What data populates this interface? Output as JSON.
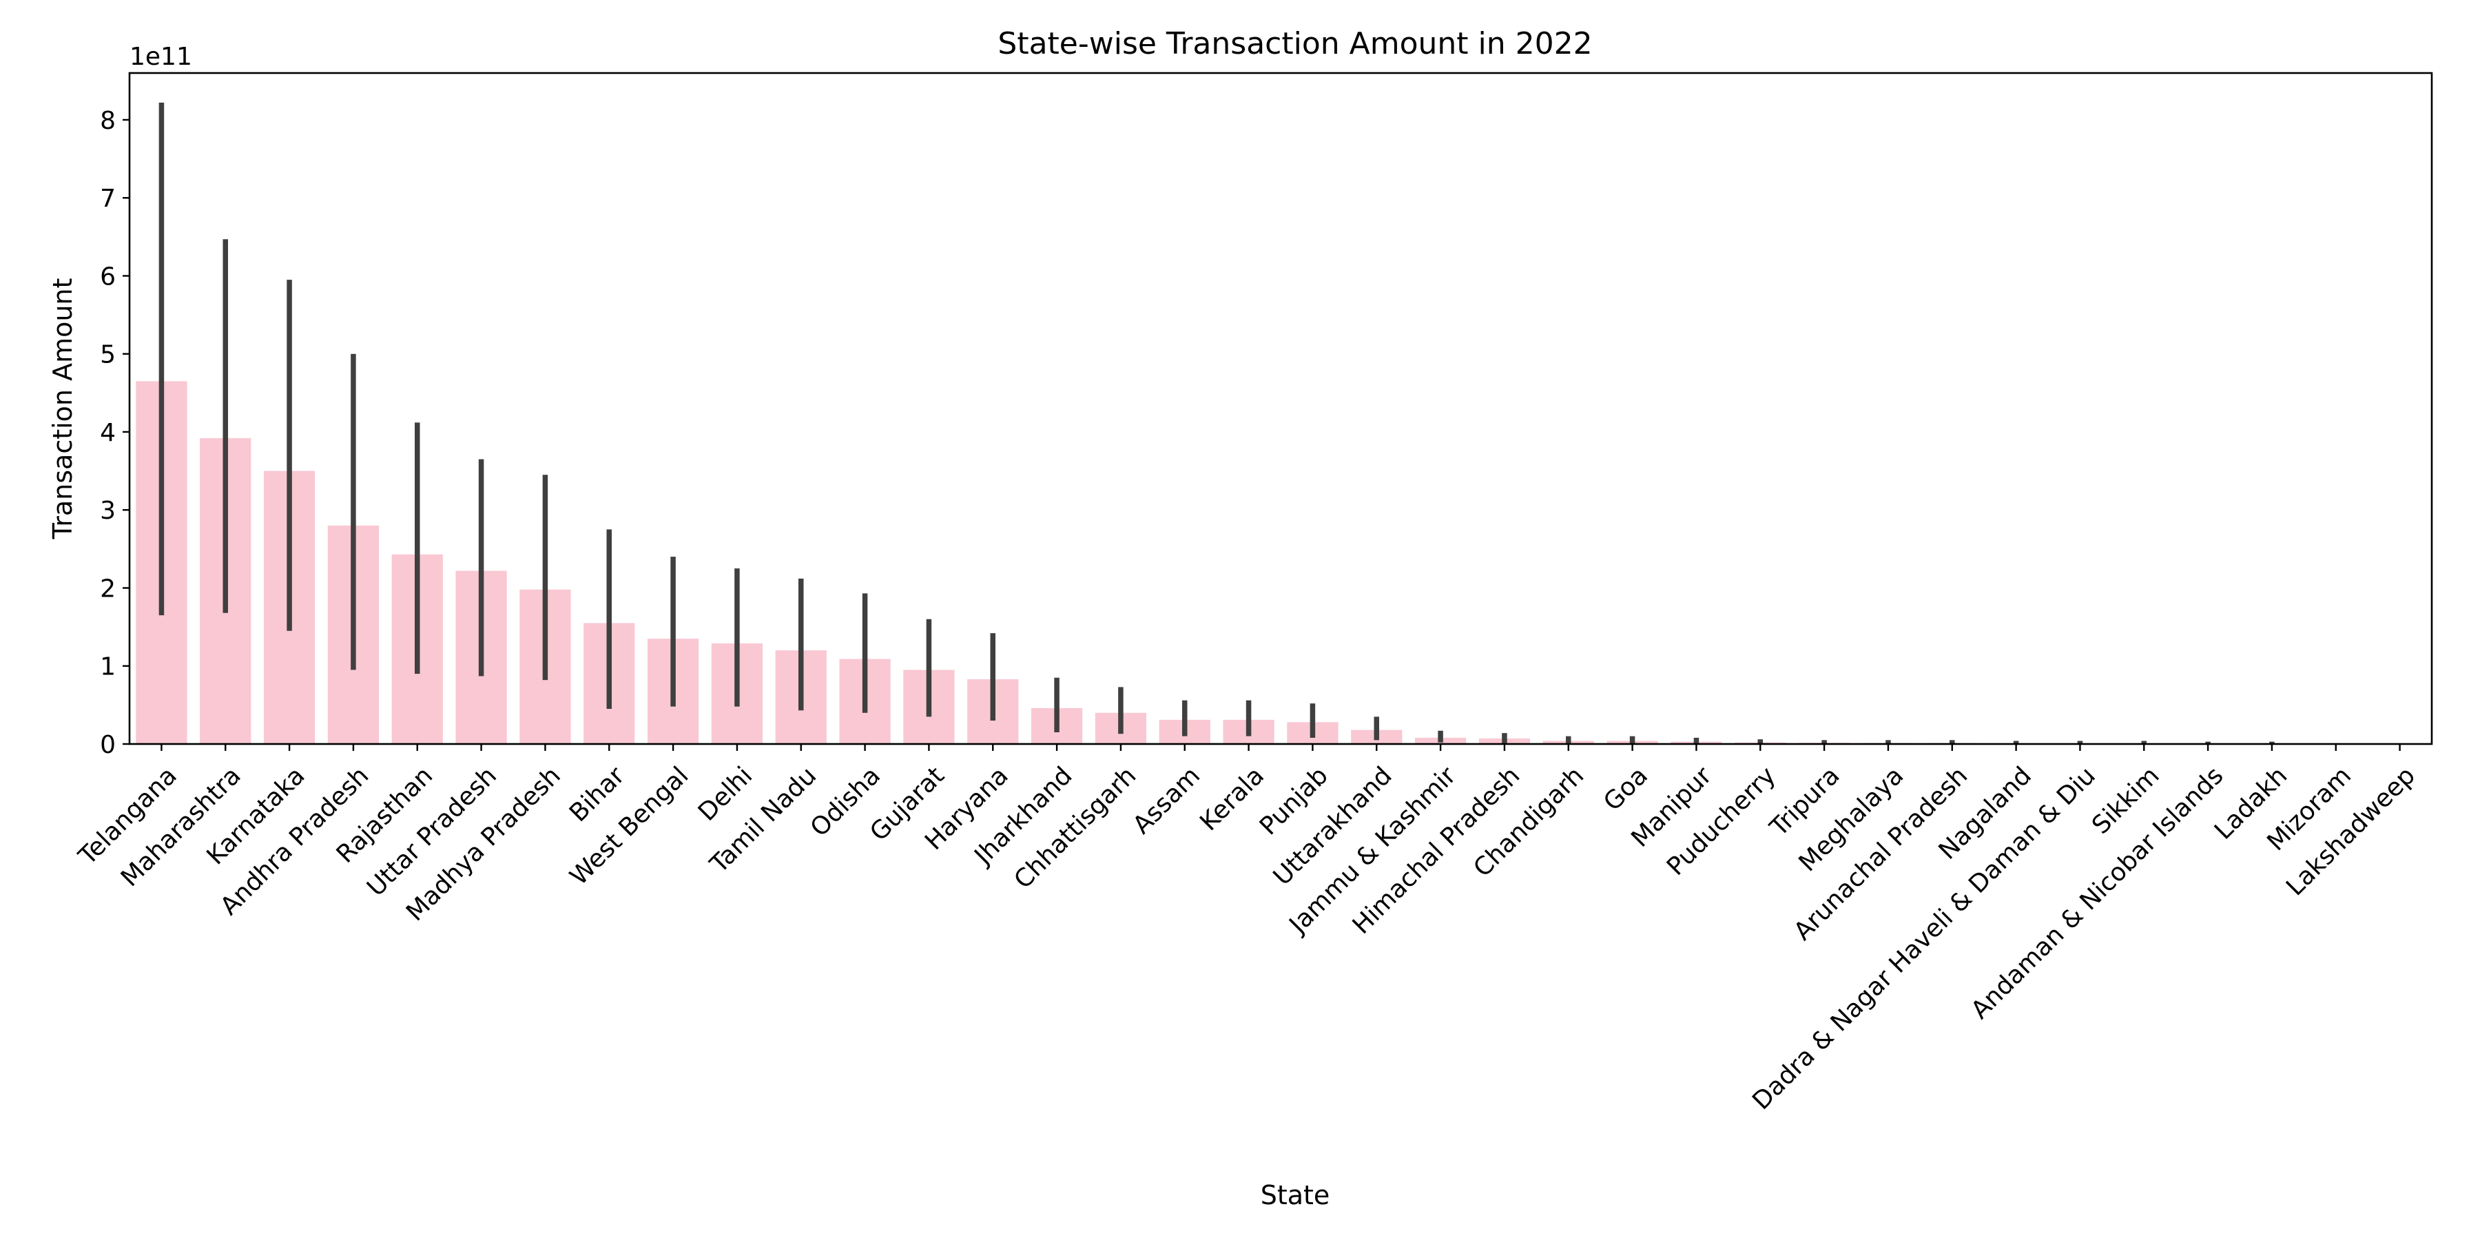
{
  "chart_data": {
    "type": "bar",
    "title": "State-wise Transaction Amount in 2022",
    "xlabel": "State",
    "ylabel": "Transaction Amount",
    "y_offset_label": "1e11",
    "y_scale_factor": 100000000000,
    "ylim": [
      0,
      8.6
    ],
    "yticks": [
      0,
      1,
      2,
      3,
      4,
      5,
      6,
      7,
      8
    ],
    "ytick_labels": [
      "0",
      "1",
      "2",
      "3",
      "4",
      "5",
      "6",
      "7",
      "8"
    ],
    "grid": false,
    "bar_color": "#f9c8d3",
    "errorbar_color": "#3f3f3f",
    "categories": [
      "Telangana",
      "Maharashtra",
      "Karnataka",
      "Andhra Pradesh",
      "Rajasthan",
      "Uttar Pradesh",
      "Madhya Pradesh",
      "Bihar",
      "West Bengal",
      "Delhi",
      "Tamil Nadu",
      "Odisha",
      "Gujarat",
      "Haryana",
      "Jharkhand",
      "Chhattisgarh",
      "Assam",
      "Kerala",
      "Punjab",
      "Uttarakhand",
      "Jammu & Kashmir",
      "Himachal Pradesh",
      "Chandigarh",
      "Goa",
      "Manipur",
      "Puducherry",
      "Tripura",
      "Meghalaya",
      "Arunachal Pradesh",
      "Nagaland",
      "Dadra & Nagar Haveli & Daman & Diu",
      "Sikkim",
      "Andaman & Nicobar Islands",
      "Ladakh",
      "Mizoram",
      "Lakshadweep"
    ],
    "values": [
      4.65,
      3.92,
      3.5,
      2.8,
      2.43,
      2.22,
      1.98,
      1.55,
      1.35,
      1.29,
      1.2,
      1.09,
      0.95,
      0.83,
      0.46,
      0.4,
      0.31,
      0.31,
      0.28,
      0.18,
      0.08,
      0.07,
      0.04,
      0.04,
      0.03,
      0.02,
      0.015,
      0.012,
      0.012,
      0.008,
      0.008,
      0.008,
      0.006,
      0.004,
      0.003,
      0.001
    ],
    "error_low": [
      1.65,
      1.68,
      1.45,
      0.95,
      0.9,
      0.87,
      0.82,
      0.45,
      0.48,
      0.48,
      0.43,
      0.4,
      0.35,
      0.3,
      0.15,
      0.13,
      0.1,
      0.1,
      0.08,
      0.05,
      0.02,
      0.01,
      0.01,
      0.01,
      0.01,
      0.005,
      0.004,
      0.003,
      0.003,
      0.002,
      0.002,
      0.002,
      0.001,
      0.001,
      0.001,
      0.0
    ],
    "error_high": [
      8.22,
      6.47,
      5.95,
      5.0,
      4.12,
      3.65,
      3.45,
      2.75,
      2.4,
      2.25,
      2.12,
      1.93,
      1.6,
      1.42,
      0.85,
      0.73,
      0.56,
      0.56,
      0.52,
      0.35,
      0.17,
      0.14,
      0.1,
      0.1,
      0.08,
      0.06,
      0.05,
      0.05,
      0.05,
      0.04,
      0.04,
      0.04,
      0.03,
      0.03,
      0.01,
      0.005
    ]
  }
}
